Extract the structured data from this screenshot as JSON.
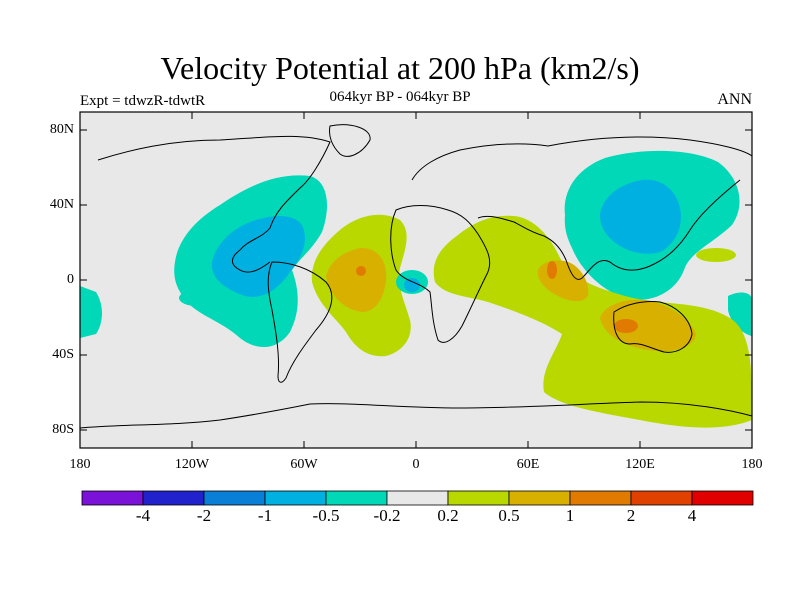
{
  "header": {
    "title": "Velocity Potential at 200 hPa (km2/s)",
    "subtitle": "064kyr BP - 064kyr BP",
    "left_label": "Expt = tdwzR-tdwtR",
    "right_label": "ANN"
  },
  "axes": {
    "lat_ticks": [
      "80N",
      "40N",
      "0",
      "40S",
      "80S"
    ],
    "lon_ticks": [
      "180",
      "120W",
      "60W",
      "0",
      "60E",
      "120E",
      "180"
    ]
  },
  "colorbar": {
    "labels": [
      "-4",
      "-2",
      "-1",
      "-0.5",
      "-0.2",
      "0.2",
      "0.5",
      "1",
      "2",
      "4"
    ],
    "colors": [
      "#7a12d8",
      "#2222cc",
      "#0a7fd8",
      "#00b0e0",
      "#00d8b8",
      "#e8e8e8",
      "#b8d800",
      "#d8b000",
      "#e07a00",
      "#e04000",
      "#e00000"
    ]
  },
  "fields": {
    "background": "#e8e8e8",
    "neg_light": "#00d8b8",
    "neg_mid": "#00b0e0",
    "pos_light": "#b8d800",
    "pos_mid": "#d8b000",
    "pos_high": "#e07a00"
  }
}
